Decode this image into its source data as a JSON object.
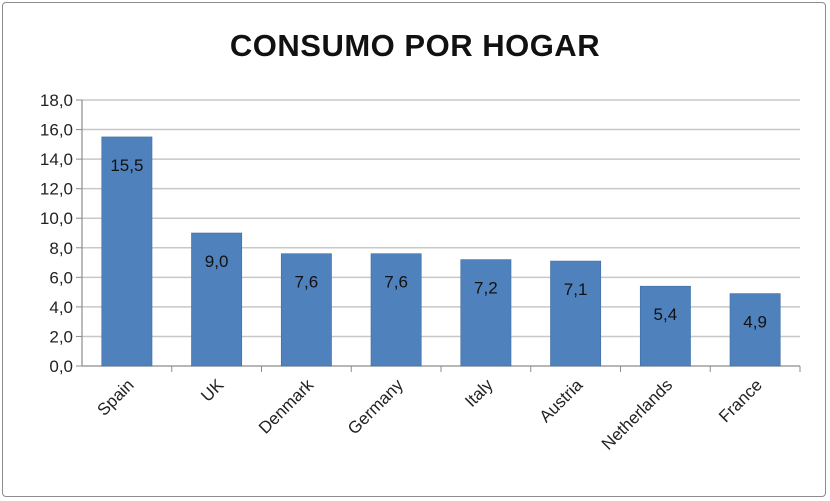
{
  "chart_data": {
    "type": "bar",
    "title": "CONSUMO POR HOGAR",
    "categories": [
      "Spain",
      "UK",
      "Denmark",
      "Germany",
      "Italy",
      "Austria",
      "Netherlands",
      "France"
    ],
    "values": [
      15.5,
      9.0,
      7.6,
      7.6,
      7.2,
      7.1,
      5.4,
      4.9
    ],
    "data_labels": [
      "15,5",
      "9,0",
      "7,6",
      "7,6",
      "7,2",
      "7,1",
      "5,4",
      "4,9"
    ],
    "y_ticks": [
      "0,0",
      "2,0",
      "4,0",
      "6,0",
      "8,0",
      "10,0",
      "12,0",
      "14,0",
      "16,0",
      "18,0"
    ],
    "ylim": [
      0,
      18
    ],
    "grid": true,
    "bar_color": "#4f81bd",
    "grid_color": "#c8c8c8"
  }
}
